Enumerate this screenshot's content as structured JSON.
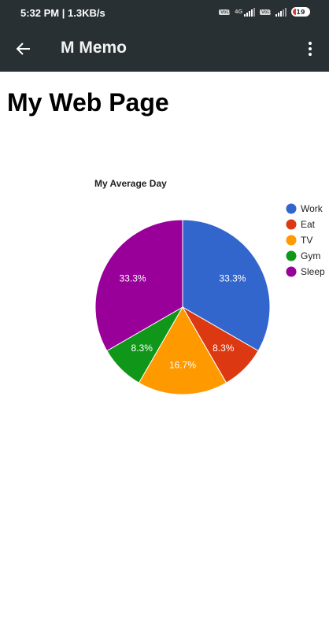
{
  "status_bar": {
    "time": "5:32 PM | 1.3KB/s",
    "net_badge_1": "VoLTE",
    "net_type": "4G",
    "net_badge_2": "VoLTE",
    "battery_level": "19"
  },
  "app_bar": {
    "title": "M Memo",
    "back_icon": "arrow-left-icon",
    "menu_icon": "more-vertical-icon"
  },
  "page": {
    "heading": "My Web Page"
  },
  "chart_data": {
    "type": "pie",
    "title": "My Average Day",
    "legend_position": "right",
    "slices": [
      {
        "name": "Work",
        "value": 8,
        "label": "33.3%",
        "color": "#3366cc"
      },
      {
        "name": "Eat",
        "value": 2,
        "label": "8.3%",
        "color": "#dc3912"
      },
      {
        "name": "TV",
        "value": 4,
        "label": "16.7%",
        "color": "#ff9900"
      },
      {
        "name": "Gym",
        "value": 2,
        "label": "8.3%",
        "color": "#109618"
      },
      {
        "name": "Sleep",
        "value": 8,
        "label": "33.3%",
        "color": "#990099"
      }
    ]
  }
}
